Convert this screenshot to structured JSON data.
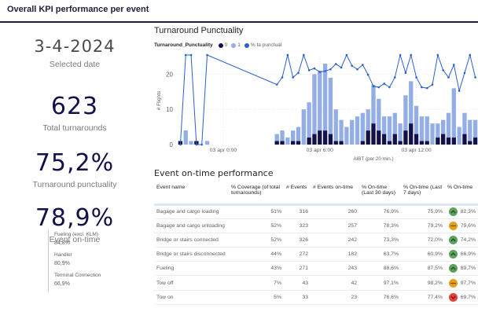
{
  "header": {
    "title": "Overall KPI performance per event"
  },
  "kpis": {
    "date": {
      "value": "3-4-2024",
      "label": "Selected date"
    },
    "total_turnarounds": {
      "value": "623",
      "label": "Total turnarounds"
    },
    "turnaround_punctuality": {
      "value": "75,2%",
      "label": "Turnaround punctuality"
    },
    "event_on_time": {
      "value": "78,9%",
      "label": "Event on-time"
    },
    "sub_kpis": [
      {
        "label": "Fueling (excl. KLM)",
        "value": "84,8%"
      },
      {
        "label": "Handler",
        "value": "80,9%"
      },
      {
        "label": "Terminal Connection",
        "value": "66,9%"
      }
    ]
  },
  "chart": {
    "title": "Turnaround Punctuality",
    "legend_title": "Turnaround_Punctuality",
    "legend": [
      {
        "label": "0",
        "color": "#12114a"
      },
      {
        "label": "1",
        "color": "#93aee6"
      },
      {
        "label": "% ta punctual",
        "color": "#2b5fcc"
      }
    ]
  },
  "chart_data": {
    "type": "bar",
    "title": "Turnaround Punctuality",
    "xlabel": "AIBT (per 20 min.)",
    "ylabel": "# Flights",
    "ylim": [
      0,
      25
    ],
    "yticks": [
      0,
      10,
      20
    ],
    "xtick_labels": [
      {
        "index": 8,
        "label": "03 apr 0:00"
      },
      {
        "index": 26,
        "label": "03 apr 6:00"
      },
      {
        "index": 44,
        "label": "03 apr 12:00"
      }
    ],
    "grid": true,
    "legend_position": "top-left",
    "series": [
      {
        "name": "0",
        "color": "#12114a",
        "values": [
          1,
          0,
          0,
          1,
          0,
          0,
          null,
          null,
          null,
          null,
          null,
          null,
          null,
          null,
          null,
          null,
          null,
          null,
          1,
          1,
          0,
          1,
          1,
          0,
          2,
          3,
          4,
          4,
          3,
          1,
          1,
          0,
          0,
          0,
          1,
          4,
          6,
          4,
          3,
          1,
          3,
          1,
          4,
          6,
          3,
          1,
          1,
          0,
          2,
          3,
          2,
          2,
          0,
          3,
          1,
          2
        ]
      },
      {
        "name": "1",
        "color": "#93aee6",
        "values": [
          0,
          4,
          1,
          0,
          0,
          1,
          null,
          null,
          null,
          null,
          null,
          null,
          null,
          null,
          null,
          null,
          null,
          null,
          2,
          3,
          2,
          3,
          4,
          10,
          10,
          17,
          17,
          19,
          16,
          9,
          6,
          5,
          7,
          8,
          8,
          6,
          11,
          9,
          5,
          7,
          6,
          5,
          10,
          12,
          8,
          7,
          7,
          6,
          4,
          4,
          7,
          14,
          5,
          6,
          6,
          5
        ]
      },
      {
        "name": "% ta punctual",
        "color": "#2b5fcc",
        "axis": "secondary",
        "values": [
          0,
          100,
          100,
          0,
          0,
          100,
          null,
          null,
          null,
          null,
          null,
          null,
          null,
          null,
          null,
          null,
          null,
          null,
          67,
          75,
          100,
          75,
          80,
          100,
          83,
          85,
          81,
          82,
          84,
          90,
          86,
          100,
          88,
          84,
          89,
          78,
          65,
          64,
          68,
          64,
          75,
          100,
          80,
          100,
          75,
          64,
          63,
          67,
          100,
          83,
          75,
          89,
          60,
          80,
          100,
          75
        ]
      }
    ]
  },
  "table": {
    "title": "Event on-time performance",
    "columns": [
      "Event name",
      "% Coverage (of total turnarounds)",
      "# Events",
      "# Events on-time",
      "% On-time (Last 30 days)",
      "% On-time (Last 7 days)",
      "% On-time"
    ],
    "rows": [
      {
        "name": "Bagage and cargo loading",
        "coverage": "51%",
        "events": "316",
        "on_time": "260",
        "last30": "76,9%",
        "last7": "75,9%",
        "status": "up",
        "pct": "82,3%"
      },
      {
        "name": "Bagage and cargo unloading",
        "coverage": "52%",
        "events": "323",
        "on_time": "257",
        "last30": "78,3%",
        "last7": "79,2%",
        "status": "neutral",
        "pct": "79,6%"
      },
      {
        "name": "Bridge or stairs connected",
        "coverage": "52%",
        "events": "326",
        "on_time": "242",
        "last30": "73,3%",
        "last7": "72,0%",
        "status": "up",
        "pct": "74,2%"
      },
      {
        "name": "Bridge or stairs disconnected",
        "coverage": "44%",
        "events": "272",
        "on_time": "182",
        "last30": "63,7%",
        "last7": "60,9%",
        "status": "up",
        "pct": "66,9%"
      },
      {
        "name": "Fueling",
        "coverage": "43%",
        "events": "271",
        "on_time": "243",
        "last30": "88,6%",
        "last7": "87,5%",
        "status": "up",
        "pct": "89,7%"
      },
      {
        "name": "Tow off",
        "coverage": "7%",
        "events": "43",
        "on_time": "42",
        "last30": "97,1%",
        "last7": "98,2%",
        "status": "neutral",
        "pct": "97,7%"
      },
      {
        "name": "Tow on",
        "coverage": "5%",
        "events": "33",
        "on_time": "23",
        "last30": "76,6%",
        "last7": "77,4%",
        "status": "down",
        "pct": "69,7%"
      }
    ],
    "status_colors": {
      "up": "#5ba35f",
      "neutral": "#e3a21a",
      "down": "#e0453b"
    }
  }
}
